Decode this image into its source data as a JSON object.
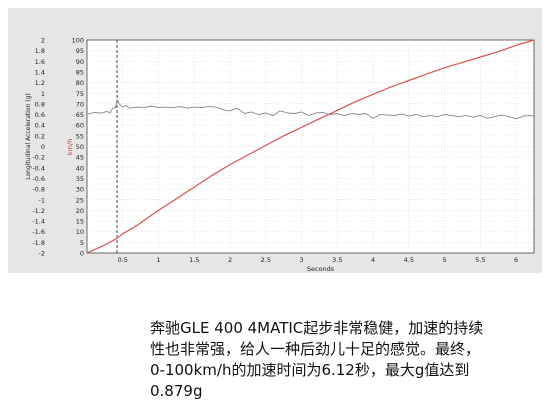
{
  "chart_data": {
    "type": "line",
    "xlabel": "Seconds",
    "y1label": "Longitudinal Acceleration (g)",
    "y2label": "km/h",
    "xlim": [
      0,
      6.25
    ],
    "y1lim": [
      -2,
      2
    ],
    "y2lim": [
      0,
      100
    ],
    "x_ticks": [
      "0.5",
      "1",
      "1.5",
      "2",
      "2.5",
      "3",
      "3.5",
      "4",
      "4.5",
      "5",
      "5.5",
      "6"
    ],
    "y1_ticks": [
      "2",
      "1.8",
      "1.6",
      "1.4",
      "1.2",
      "1",
      "0.8",
      "0.6",
      "0.4",
      "0.2",
      "0",
      "-0.2",
      "-0.4",
      "-0.6",
      "-0.8",
      "-1",
      "-1.2",
      "-1.4",
      "-1.6",
      "-1.8",
      "-2"
    ],
    "y2_ticks": [
      "100",
      "95",
      "90",
      "85",
      "80",
      "75",
      "70",
      "65",
      "60",
      "55",
      "50",
      "45",
      "40",
      "35",
      "30",
      "25",
      "20",
      "15",
      "10",
      "5",
      "0"
    ],
    "grid": true,
    "marker_x": 0.42,
    "series": [
      {
        "axis": "speed",
        "color": "#d9534f",
        "x": [
          0,
          0.2,
          0.4,
          0.5,
          0.7,
          1.0,
          1.25,
          1.5,
          1.75,
          2.0,
          2.25,
          2.5,
          2.75,
          3.0,
          3.25,
          3.5,
          3.75,
          4.0,
          4.25,
          4.5,
          4.75,
          5.0,
          5.25,
          5.5,
          5.75,
          6.0,
          6.25
        ],
        "y": [
          0,
          3,
          6.5,
          9,
          13,
          20,
          25.5,
          31,
          36.5,
          41.5,
          46,
          50.5,
          55,
          59,
          63,
          67,
          71,
          74.5,
          78,
          81,
          84,
          87,
          89.5,
          92,
          94.5,
          97.5,
          100
        ]
      },
      {
        "axis": "accel",
        "color": "#888888",
        "x": [
          0,
          0.1,
          0.2,
          0.28,
          0.32,
          0.36,
          0.4,
          0.42,
          0.45,
          0.5,
          0.55,
          0.6,
          0.7,
          0.8,
          0.9,
          1.0,
          1.1,
          1.2,
          1.3,
          1.4,
          1.5,
          1.6,
          1.7,
          1.8,
          1.9,
          2.0,
          2.1,
          2.2,
          2.3,
          2.4,
          2.5,
          2.6,
          2.7,
          2.8,
          2.9,
          3.0,
          3.1,
          3.2,
          3.3,
          3.4,
          3.5,
          3.6,
          3.7,
          3.8,
          3.9,
          4.0,
          4.1,
          4.2,
          4.3,
          4.4,
          4.5,
          4.6,
          4.7,
          4.8,
          4.9,
          5.0,
          5.1,
          5.2,
          5.3,
          5.4,
          5.5,
          5.6,
          5.7,
          5.8,
          5.9,
          6.0,
          6.1,
          6.2,
          6.25
        ],
        "y": [
          0.6,
          0.64,
          0.63,
          0.66,
          0.63,
          0.72,
          0.73,
          0.879,
          0.8,
          0.74,
          0.77,
          0.72,
          0.74,
          0.73,
          0.76,
          0.73,
          0.74,
          0.73,
          0.75,
          0.72,
          0.74,
          0.73,
          0.75,
          0.74,
          0.69,
          0.67,
          0.72,
          0.62,
          0.65,
          0.6,
          0.63,
          0.58,
          0.67,
          0.63,
          0.62,
          0.65,
          0.58,
          0.63,
          0.64,
          0.6,
          0.62,
          0.58,
          0.62,
          0.6,
          0.62,
          0.53,
          0.6,
          0.59,
          0.58,
          0.61,
          0.57,
          0.6,
          0.56,
          0.58,
          0.56,
          0.6,
          0.58,
          0.56,
          0.58,
          0.55,
          0.58,
          0.53,
          0.56,
          0.59,
          0.56,
          0.52,
          0.57,
          0.58,
          0.57
        ]
      }
    ]
  },
  "caption_lines": [
    "奔驰GLE 400 4MATIC起步非常稳健，加速的持续",
    "性也非常强，给人一种后劲儿十足的感觉。最终，",
    "0-100km/h的加速时间为6.12秒，最大g值达到",
    "0.879g"
  ]
}
